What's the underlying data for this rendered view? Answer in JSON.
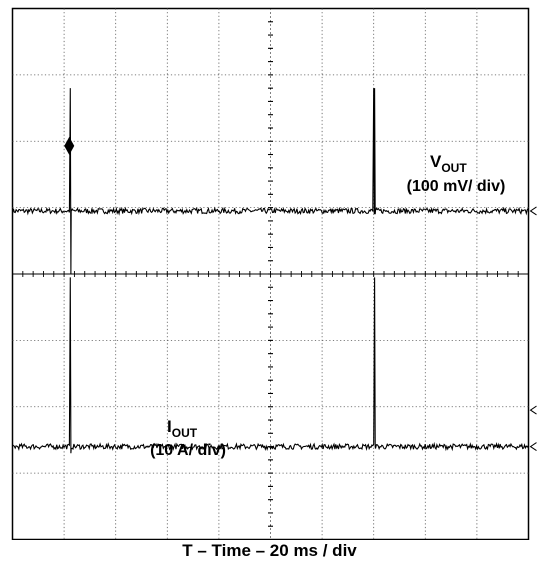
{
  "chart_data": {
    "type": "line",
    "title": "",
    "xlabel": "T – Time – 20 ms / div",
    "ylabel": "",
    "grid": true,
    "divisions": {
      "x": 10,
      "y": 8
    },
    "x_unit": "ms",
    "x_per_div": 20,
    "xlim": [
      0,
      200
    ],
    "trigger_marker_x": 22,
    "series": [
      {
        "name": "VOUT",
        "label_main": "V",
        "label_sub": "OUT",
        "scale_text": "(100 mV/ div)",
        "scale_per_div": 100,
        "unit": "mV",
        "baseline_mV": 0,
        "noise_mV": 4,
        "events": [
          {
            "t_ms": 22.3,
            "peak_mV": 185,
            "low_mV": -95
          },
          {
            "t_ms": 140.2,
            "peak_mV": 185,
            "low_mV": -5
          }
        ]
      },
      {
        "name": "IOUT",
        "label_main": "I",
        "label_sub": "OUT",
        "scale_text": "(10 A/ div)",
        "scale_per_div": 10,
        "unit": "A",
        "baseline_A": 0,
        "noise_A": 0.4,
        "events": [
          {
            "t_ms": 22.5,
            "peak_A": 25.5,
            "low_A": -1
          },
          {
            "t_ms": 140.3,
            "peak_A": 25.5,
            "low_A": 0
          }
        ]
      }
    ]
  }
}
